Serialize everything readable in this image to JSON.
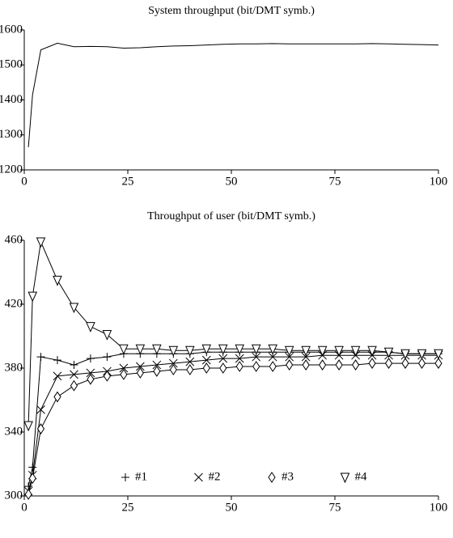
{
  "chart_data": [
    {
      "type": "line",
      "title": "System throughput (bit/DMT symb.)",
      "x": [
        1,
        2,
        4,
        8,
        12,
        16,
        20,
        24,
        28,
        32,
        36,
        40,
        44,
        48,
        52,
        56,
        60,
        64,
        68,
        72,
        76,
        80,
        84,
        88,
        92,
        96,
        100
      ],
      "values": [
        1265,
        1415,
        1543,
        1562,
        1552,
        1553,
        1552,
        1548,
        1549,
        1552,
        1554,
        1555,
        1557,
        1559,
        1560,
        1560,
        1561,
        1560,
        1560,
        1560,
        1560,
        1560,
        1561,
        1560,
        1559,
        1558,
        1557
      ],
      "color": "#000000",
      "xlim": [
        0,
        100
      ],
      "xticks": [
        0,
        25,
        50,
        75,
        100
      ],
      "ylim": [
        1200,
        1600
      ],
      "yticks": [
        1200,
        1300,
        1400,
        1500,
        1600
      ]
    },
    {
      "type": "line",
      "title": "Throughput of user (bit/DMT symb.)",
      "x": [
        1,
        2,
        4,
        8,
        12,
        16,
        20,
        24,
        28,
        32,
        36,
        40,
        44,
        48,
        52,
        56,
        60,
        64,
        68,
        72,
        76,
        80,
        84,
        88,
        92,
        96,
        100
      ],
      "series": [
        {
          "name": "#1",
          "marker": "plus",
          "color": "#000000",
          "values": [
            306,
            318,
            387,
            385,
            382,
            386,
            387,
            389,
            389,
            389,
            389,
            389,
            390,
            390,
            390,
            390,
            390,
            390,
            390,
            390,
            390,
            390,
            390,
            390,
            389,
            389,
            389
          ]
        },
        {
          "name": "#2",
          "marker": "cross",
          "color": "#000000",
          "values": [
            303,
            313,
            354,
            375,
            376,
            377,
            378,
            380,
            381,
            382,
            383,
            384,
            385,
            386,
            386,
            387,
            387,
            387,
            387,
            388,
            388,
            388,
            388,
            388,
            388,
            388,
            388
          ]
        },
        {
          "name": "#3",
          "marker": "diamond",
          "color": "#000000",
          "values": [
            301,
            311,
            342,
            362,
            369,
            373,
            375,
            376,
            377,
            378,
            379,
            379,
            380,
            380,
            381,
            381,
            381,
            382,
            382,
            382,
            382,
            382,
            383,
            383,
            383,
            383,
            383
          ]
        },
        {
          "name": "#4",
          "marker": "triangle-down",
          "color": "#000000",
          "values": [
            344,
            425,
            459,
            435,
            418,
            406,
            401,
            392,
            392,
            392,
            391,
            391,
            392,
            392,
            392,
            392,
            392,
            391,
            391,
            391,
            391,
            391,
            391,
            390,
            389,
            389,
            389
          ]
        }
      ],
      "legend": "lower center",
      "xlim": [
        0,
        100
      ],
      "xticks": [
        0,
        25,
        50,
        75,
        100
      ],
      "ylim": [
        300,
        460
      ],
      "yticks": [
        300,
        340,
        380,
        420,
        460
      ]
    }
  ]
}
